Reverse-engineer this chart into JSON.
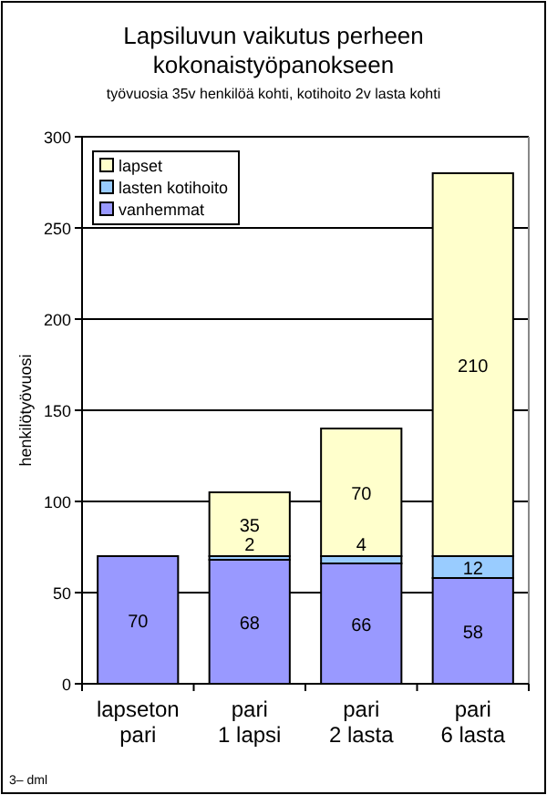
{
  "chart_data": {
    "type": "bar",
    "title": "Lapsiluvun vaikutus perheen kokonaistyöpanokseen",
    "subtitle": "työvuosia 35v henkilöä kohti, kotihoito 2v lasta kohti",
    "ylabel": "henkilötyövuosi",
    "categories": [
      "lapseton\npari",
      "pari\n1 lapsi",
      "pari\n2 lasta",
      "pari\n6 lasta"
    ],
    "series": [
      {
        "name": "vanhemmat",
        "color": "#9999ff",
        "values": [
          70,
          68,
          66,
          58
        ]
      },
      {
        "name": "lasten kotihoito",
        "color": "#99ccff",
        "values": [
          null,
          2,
          4,
          12
        ]
      },
      {
        "name": "lapset",
        "color": "#ffffcc",
        "values": [
          null,
          35,
          70,
          210
        ]
      }
    ],
    "stacked": true,
    "ylim": [
      0,
      300
    ],
    "yticks": [
      0,
      50,
      100,
      150,
      200,
      250,
      300
    ],
    "grid": "y",
    "legend": "top left",
    "data_labels": true,
    "annotations": [
      "3– dml"
    ]
  }
}
